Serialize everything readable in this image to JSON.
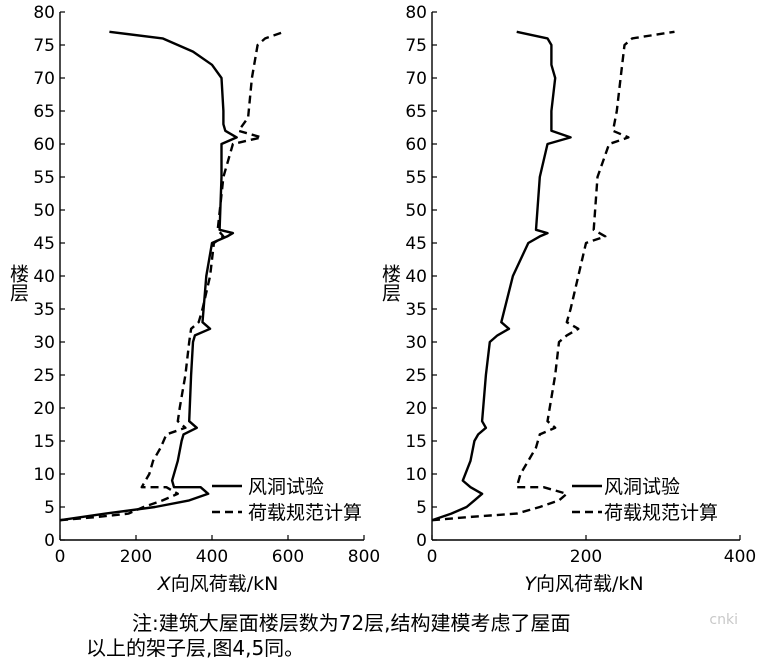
{
  "chart_data": [
    {
      "type": "line",
      "xlabel_italic": "X",
      "xlabel_rest": "向风荷载/kN",
      "ylabel": "楼层",
      "xlim": [
        0,
        800
      ],
      "ylim": [
        0,
        80
      ],
      "xticks": [
        0,
        200,
        400,
        600,
        800
      ],
      "yticks": [
        0,
        5,
        10,
        15,
        20,
        25,
        30,
        35,
        40,
        45,
        50,
        55,
        60,
        65,
        70,
        75,
        80
      ],
      "legend": [
        "风洞试验",
        "荷载规范计算"
      ],
      "legend_position": "bottom-right",
      "grid": false,
      "series": [
        {
          "name": "风洞试验",
          "style": "solid",
          "points": [
            [
              0,
              3
            ],
            [
              120,
              4
            ],
            [
              250,
              5
            ],
            [
              340,
              6
            ],
            [
              390,
              7
            ],
            [
              370,
              8
            ],
            [
              300,
              8
            ],
            [
              295,
              9
            ],
            [
              310,
              12
            ],
            [
              320,
              15
            ],
            [
              325,
              16
            ],
            [
              360,
              17
            ],
            [
              340,
              18
            ],
            [
              345,
              25
            ],
            [
              350,
              30
            ],
            [
              355,
              31
            ],
            [
              395,
              32
            ],
            [
              375,
              33
            ],
            [
              385,
              40
            ],
            [
              400,
              45
            ],
            [
              440,
              46
            ],
            [
              455,
              46.5
            ],
            [
              420,
              47
            ],
            [
              425,
              55
            ],
            [
              425,
              60
            ],
            [
              465,
              61
            ],
            [
              435,
              62
            ],
            [
              430,
              63
            ],
            [
              430,
              65
            ],
            [
              425,
              70
            ],
            [
              400,
              72
            ],
            [
              350,
              74
            ],
            [
              270,
              76
            ],
            [
              130,
              77
            ]
          ]
        },
        {
          "name": "荷载规范计算",
          "style": "dashed",
          "points": [
            [
              0,
              3
            ],
            [
              100,
              3.5
            ],
            [
              180,
              4
            ],
            [
              220,
              5
            ],
            [
              270,
              6
            ],
            [
              310,
              7
            ],
            [
              280,
              8
            ],
            [
              215,
              8
            ],
            [
              235,
              10
            ],
            [
              245,
              12
            ],
            [
              265,
              14
            ],
            [
              280,
              16
            ],
            [
              330,
              17
            ],
            [
              310,
              18
            ],
            [
              315,
              20
            ],
            [
              330,
              25
            ],
            [
              340,
              30
            ],
            [
              345,
              32
            ],
            [
              365,
              33
            ],
            [
              375,
              35
            ],
            [
              395,
              40
            ],
            [
              405,
              45
            ],
            [
              430,
              46
            ],
            [
              415,
              47
            ],
            [
              430,
              55
            ],
            [
              455,
              60
            ],
            [
              530,
              61
            ],
            [
              470,
              62
            ],
            [
              495,
              64
            ],
            [
              505,
              70
            ],
            [
              520,
              75
            ],
            [
              540,
              76
            ],
            [
              590,
              77
            ]
          ]
        }
      ]
    },
    {
      "type": "line",
      "xlabel_italic": "Y",
      "xlabel_rest": "向风荷载/kN",
      "ylabel": "楼层",
      "xlim": [
        0,
        400
      ],
      "ylim": [
        0,
        80
      ],
      "xticks": [
        0,
        200,
        400
      ],
      "yticks": [
        0,
        5,
        10,
        15,
        20,
        25,
        30,
        35,
        40,
        45,
        50,
        55,
        60,
        65,
        70,
        75,
        80
      ],
      "legend": [
        "风洞试验",
        "荷载规范计算"
      ],
      "legend_position": "bottom-right",
      "grid": false,
      "series": [
        {
          "name": "风洞试验",
          "style": "solid",
          "points": [
            [
              0,
              3
            ],
            [
              25,
              4
            ],
            [
              45,
              5
            ],
            [
              55,
              6
            ],
            [
              65,
              7
            ],
            [
              50,
              8
            ],
            [
              40,
              9
            ],
            [
              50,
              12
            ],
            [
              55,
              15
            ],
            [
              60,
              16
            ],
            [
              70,
              17
            ],
            [
              65,
              18
            ],
            [
              70,
              25
            ],
            [
              75,
              30
            ],
            [
              85,
              31
            ],
            [
              100,
              32
            ],
            [
              90,
              33
            ],
            [
              105,
              40
            ],
            [
              125,
              45
            ],
            [
              140,
              46
            ],
            [
              150,
              46.5
            ],
            [
              135,
              47
            ],
            [
              140,
              55
            ],
            [
              150,
              60
            ],
            [
              180,
              61
            ],
            [
              155,
              62
            ],
            [
              155,
              65
            ],
            [
              160,
              70
            ],
            [
              155,
              72
            ],
            [
              155,
              75
            ],
            [
              150,
              76
            ],
            [
              110,
              77
            ]
          ]
        },
        {
          "name": "荷载规范计算",
          "style": "dashed",
          "points": [
            [
              0,
              3
            ],
            [
              50,
              3.5
            ],
            [
              110,
              4
            ],
            [
              140,
              5
            ],
            [
              165,
              6
            ],
            [
              175,
              7
            ],
            [
              145,
              8
            ],
            [
              110,
              8
            ],
            [
              115,
              10
            ],
            [
              125,
              12
            ],
            [
              135,
              14
            ],
            [
              140,
              16
            ],
            [
              160,
              17
            ],
            [
              150,
              18
            ],
            [
              160,
              25
            ],
            [
              165,
              30
            ],
            [
              175,
              31
            ],
            [
              190,
              32
            ],
            [
              175,
              33
            ],
            [
              180,
              35
            ],
            [
              190,
              40
            ],
            [
              200,
              45
            ],
            [
              225,
              46
            ],
            [
              210,
              47
            ],
            [
              215,
              55
            ],
            [
              230,
              60
            ],
            [
              255,
              61
            ],
            [
              235,
              62
            ],
            [
              240,
              65
            ],
            [
              245,
              70
            ],
            [
              250,
              75
            ],
            [
              260,
              76
            ],
            [
              315,
              77
            ]
          ]
        }
      ]
    }
  ],
  "note_line1": "注:建筑大屋面楼层数为72层,结构建模考虑了屋面",
  "note_line2": "以上的架子层,图4,5同。",
  "watermark": "cnki"
}
